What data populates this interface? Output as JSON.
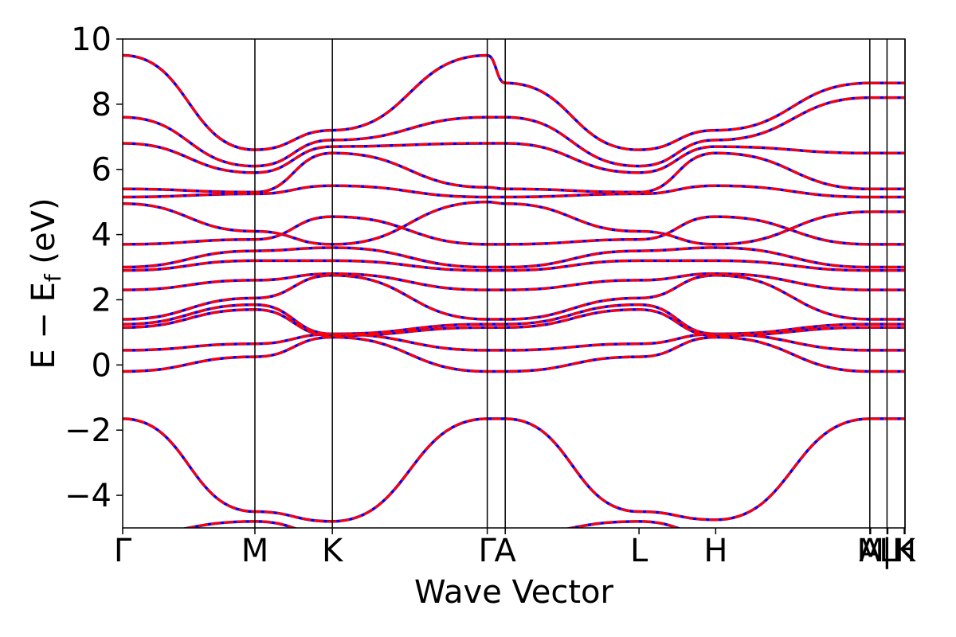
{
  "chart_data": {
    "type": "line",
    "xlabel": "Wave Vector",
    "ylabel": "E − E_f (eV)",
    "ylabel_parts": {
      "main": "E − E",
      "sub": "f",
      "unit": " (eV)"
    },
    "ylim": [
      -5,
      10
    ],
    "yticks": [
      -4,
      -2,
      0,
      2,
      4,
      6,
      8,
      10
    ],
    "ytick_labels": [
      "−4",
      "−2",
      "0",
      "2",
      "4",
      "6",
      "8",
      "10"
    ],
    "high_symmetry_points": [
      {
        "label": "Γ",
        "k": 0.0
      },
      {
        "label": "M",
        "k": 0.169
      },
      {
        "label": "K",
        "k": 0.268
      },
      {
        "label": "Γ",
        "k": 0.466
      },
      {
        "label": "A",
        "k": 0.489
      },
      {
        "label": "L",
        "k": 0.66
      },
      {
        "label": "H",
        "k": 0.758
      },
      {
        "label": "A",
        "k": 0.955
      },
      {
        "label": "M",
        "k": 0.956
      },
      {
        "label": "|",
        "k": 0.977
      },
      {
        "label": "L",
        "k": 0.978
      },
      {
        "label": "H",
        "k": 0.999
      },
      {
        "label": "K",
        "k": 1.0
      }
    ],
    "xlim": [
      0,
      1
    ],
    "vertical_lines_k": [
      0.169,
      0.268,
      0.466,
      0.489,
      0.955,
      0.977,
      1.0
    ],
    "series": [
      {
        "color": "#0000ff",
        "style": "solid"
      },
      {
        "color": "#ff0000",
        "style": "dashed"
      }
    ],
    "bands": [
      [
        -1.65,
        -4.5,
        -4.8,
        -1.65,
        -1.65,
        -4.5,
        -4.75,
        -1.65
      ],
      [
        -0.2,
        0.25,
        0.85,
        -0.2,
        -0.2,
        0.25,
        0.85,
        -0.2
      ],
      [
        0.45,
        0.65,
        0.95,
        0.45,
        0.45,
        0.65,
        0.95,
        0.45
      ],
      [
        1.15,
        1.7,
        0.9,
        1.15,
        1.15,
        1.7,
        0.9,
        1.15
      ],
      [
        1.25,
        1.85,
        0.95,
        1.25,
        1.25,
        1.85,
        0.95,
        1.25
      ],
      [
        1.4,
        2.05,
        2.75,
        1.4,
        1.4,
        2.05,
        2.75,
        1.4
      ],
      [
        2.3,
        2.6,
        2.8,
        2.3,
        2.3,
        2.6,
        2.8,
        2.3
      ],
      [
        2.9,
        3.2,
        3.2,
        2.9,
        2.9,
        3.2,
        3.2,
        2.9
      ],
      [
        3.0,
        3.5,
        3.6,
        3.0,
        3.0,
        3.5,
        3.6,
        3.0
      ],
      [
        3.7,
        3.85,
        4.55,
        3.7,
        3.7,
        3.85,
        4.55,
        3.7
      ],
      [
        4.95,
        4.1,
        3.7,
        5.0,
        4.95,
        4.1,
        3.7,
        4.7
      ],
      [
        5.15,
        5.25,
        5.5,
        5.15,
        5.15,
        5.25,
        5.5,
        5.15
      ],
      [
        5.4,
        5.3,
        6.5,
        5.45,
        5.4,
        5.3,
        6.5,
        5.4
      ],
      [
        6.8,
        5.9,
        6.7,
        6.8,
        6.8,
        5.9,
        6.7,
        6.5
      ],
      [
        7.6,
        6.1,
        6.9,
        7.6,
        7.6,
        6.1,
        6.9,
        8.2
      ],
      [
        9.5,
        6.6,
        7.2,
        9.5,
        8.65,
        6.6,
        7.2,
        8.65
      ]
    ],
    "bottom_bands": [
      [
        -5.2,
        -4.8,
        -5.2,
        -5.2,
        -5.2,
        -4.8,
        -5.2,
        -5.2
      ]
    ]
  }
}
